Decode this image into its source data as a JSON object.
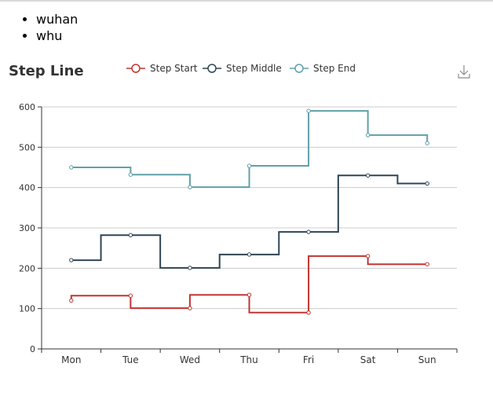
{
  "list": {
    "items": [
      "wuhan",
      "whu"
    ]
  },
  "toolbox": {
    "save_icon": "download-icon"
  },
  "colors": {
    "step_start": "#c23531",
    "step_middle": "#2f4554",
    "step_end": "#61a0a8",
    "axis": "#333333",
    "grid": "#cccccc",
    "text": "#333333",
    "muted": "#999999"
  },
  "chart_data": {
    "type": "line",
    "title": "Step Line",
    "categories": [
      "Mon",
      "Tue",
      "Wed",
      "Thu",
      "Fri",
      "Sat",
      "Sun"
    ],
    "ylim": [
      0,
      600
    ],
    "yticks": [
      0,
      100,
      200,
      300,
      400,
      500,
      600
    ],
    "grid": true,
    "legend": "top-center",
    "series": [
      {
        "name": "Step Start",
        "step": "start",
        "values": [
          120,
          132,
          101,
          134,
          90,
          230,
          210
        ]
      },
      {
        "name": "Step Middle",
        "step": "middle",
        "values": [
          220,
          282,
          201,
          234,
          290,
          430,
          410
        ]
      },
      {
        "name": "Step End",
        "step": "end",
        "values": [
          450,
          432,
          401,
          454,
          590,
          530,
          510
        ]
      }
    ]
  }
}
